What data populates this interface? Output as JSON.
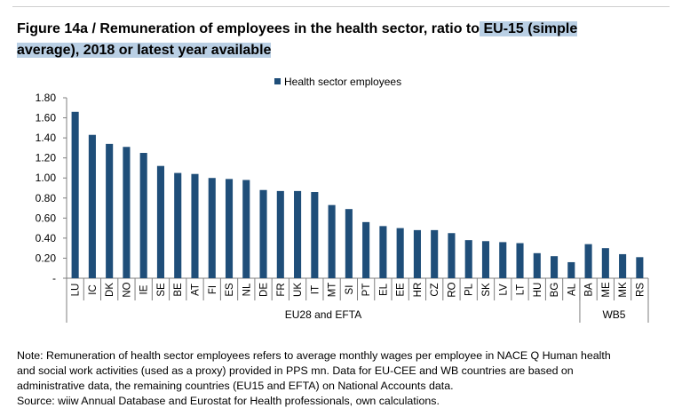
{
  "title": {
    "main": "Figure 14a / Remuneration of employees in the health sector, ratio to",
    "highlight": " EU-15 (simple average), 2018 or latest year available"
  },
  "chart_data": {
    "type": "bar",
    "legend": "Health sector employees",
    "legend_position": "top",
    "categories": [
      "LU",
      "IC",
      "DK",
      "NO",
      "IE",
      "SE",
      "BE",
      "AT",
      "FI",
      "ES",
      "NL",
      "DE",
      "FR",
      "UK",
      "IT",
      "MT",
      "SI",
      "PT",
      "EL",
      "EE",
      "HR",
      "CZ",
      "RO",
      "PL",
      "SK",
      "LV",
      "LT",
      "HU",
      "BG",
      "AL",
      "BA",
      "ME",
      "MK",
      "RS"
    ],
    "series": [
      {
        "name": "Health sector employees",
        "values": [
          1.66,
          1.43,
          1.34,
          1.31,
          1.25,
          1.12,
          1.05,
          1.04,
          1.0,
          0.99,
          0.98,
          0.88,
          0.87,
          0.87,
          0.86,
          0.73,
          0.69,
          0.56,
          0.52,
          0.5,
          0.48,
          0.48,
          0.45,
          0.38,
          0.37,
          0.36,
          0.35,
          0.25,
          0.22,
          0.16,
          0.34,
          0.3,
          0.24,
          0.21
        ]
      }
    ],
    "y_ticks": [
      "-",
      "0.20",
      "0.40",
      "0.60",
      "0.80",
      "1.00",
      "1.20",
      "1.40",
      "1.60",
      "1.80"
    ],
    "ylim": [
      0,
      1.8
    ],
    "groups": [
      {
        "label": "EU28 and EFTA",
        "count": 30
      },
      {
        "label": "WB5",
        "count": 4
      }
    ],
    "grid": false,
    "bar_color": "#1f4e79"
  },
  "note": [
    "Note: Remuneration of health sector employees refers to average monthly wages per employee in NACE Q Human health",
    "and social work activities (used as a proxy) provided in PPS mn. Data for EU-CEE and WB countries are based on",
    "administrative data, the remaining countries (EU15 and EFTA) on National Accounts data.",
    "Source: wiiw Annual Database and Eurostat for Health professionals, own calculations."
  ]
}
